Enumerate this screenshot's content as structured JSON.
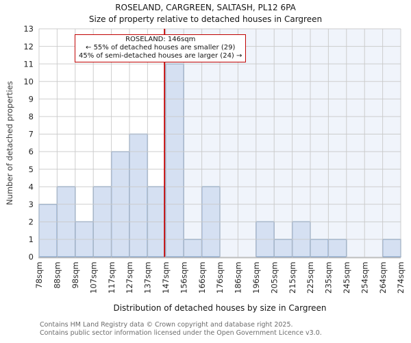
{
  "chart_data": {
    "type": "bar",
    "title": "ROSELAND, CARGREEN, SALTASH, PL12 6PA",
    "subtitle": "Size of property relative to detached houses in Cargreen",
    "xlabel": "Distribution of detached houses by size in Cargreen",
    "ylabel": "Number of detached properties",
    "x_min": 78,
    "x_max": 274,
    "x_tick_labels": [
      "78sqm",
      "88sqm",
      "98sqm",
      "107sqm",
      "117sqm",
      "127sqm",
      "137sqm",
      "147sqm",
      "156sqm",
      "166sqm",
      "176sqm",
      "186sqm",
      "196sqm",
      "205sqm",
      "215sqm",
      "225sqm",
      "235sqm",
      "245sqm",
      "254sqm",
      "264sqm",
      "274sqm"
    ],
    "values": [
      3,
      4,
      2,
      4,
      6,
      7,
      4,
      11,
      1,
      4,
      0,
      0,
      2,
      1,
      2,
      1,
      1,
      0,
      0,
      1
    ],
    "ylim": [
      0,
      13
    ],
    "y_ticks": [
      0,
      1,
      2,
      3,
      4,
      5,
      6,
      7,
      8,
      9,
      10,
      11,
      12,
      13
    ],
    "grid": true,
    "legend": false,
    "marker": {
      "value": 146,
      "label": "ROSELAND: 146sqm",
      "smaller_text": "← 55% of detached houses are smaller (29)",
      "larger_text": "45% of semi-detached houses are larger (24) →"
    },
    "colors": {
      "bar_fill": "#d5e0f2",
      "bar_edge": "#4f81bd",
      "grid": "#c9c9c9",
      "marker_line": "#c40000",
      "annotation_border": "#c00000",
      "shade_right": "#f0f4fb",
      "axis_line": "#bdbdbd",
      "tick_text": "#262626"
    }
  },
  "footer": {
    "line1": "Contains HM Land Registry data © Crown copyright and database right 2025.",
    "line2": "Contains public sector information licensed under the Open Government Licence v3.0."
  }
}
